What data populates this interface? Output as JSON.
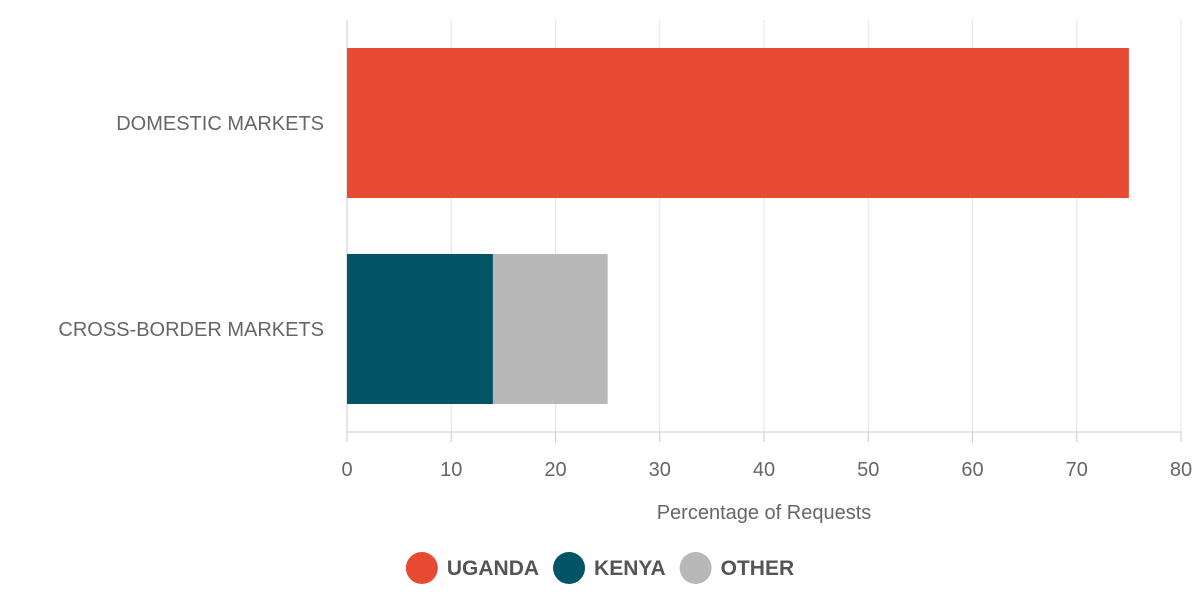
{
  "chart_data": {
    "type": "bar",
    "orientation": "horizontal",
    "stacked": true,
    "categories": [
      "DOMESTIC MARKETS",
      "CROSS-BORDER MARKETS"
    ],
    "series": [
      {
        "name": "UGANDA",
        "color": "#e84b33",
        "values": [
          75,
          0
        ]
      },
      {
        "name": "KENYA",
        "color": "#035566",
        "values": [
          0,
          14
        ]
      },
      {
        "name": "OTHER",
        "color": "#b8b8b8",
        "values": [
          0,
          11
        ]
      }
    ],
    "xlabel": "Percentage of Requests",
    "ylabel": "",
    "xlim": [
      0,
      80
    ],
    "xticks": [
      0,
      10,
      20,
      30,
      40,
      50,
      60,
      70,
      80
    ],
    "grid": true,
    "legend_position": "bottom"
  }
}
